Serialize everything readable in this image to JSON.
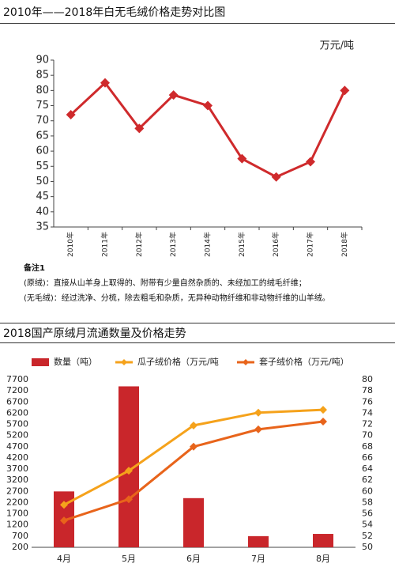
{
  "chart_data": [
    {
      "type": "line",
      "title": "2010年——2018年白无毛绒价格走势对比图",
      "ylabel": "万元/吨",
      "categories": [
        "2010年",
        "2011年",
        "2012年",
        "2013年",
        "2014年",
        "2015年",
        "2016年",
        "2017年",
        "2018年"
      ],
      "series": [
        {
          "color": "#cf2a2c",
          "values": [
            72,
            82.5,
            67.5,
            78.5,
            75,
            57.5,
            51.5,
            56.5,
            80
          ]
        }
      ],
      "ylim": [
        35,
        90
      ],
      "yticks": [
        35,
        40,
        45,
        50,
        55,
        60,
        65,
        70,
        75,
        80,
        85,
        90
      ],
      "grid": false
    },
    {
      "type": "bar",
      "title": "2018国产原绒月流通数量及价格走势",
      "categories": [
        "4月",
        "5月",
        "6月",
        "7月",
        "8月"
      ],
      "series": [
        {
          "name": "数量（吨）",
          "type": "bar",
          "color": "#c9262b",
          "values": [
            2700,
            7400,
            2400,
            700,
            800
          ]
        },
        {
          "name": "瓜子绒价格（万元/吨",
          "type": "line",
          "axis": "y2",
          "color": "#f5a21b",
          "values": [
            57.6,
            63.7,
            71.8,
            74.1,
            74.6
          ]
        },
        {
          "name": "套子绒价格（万元/吨）",
          "type": "line",
          "axis": "y2",
          "color": "#e8641b",
          "values": [
            54.8,
            58.6,
            68,
            71.1,
            72.5
          ]
        }
      ],
      "ylim": [
        200,
        7700
      ],
      "yticks": [
        200,
        700,
        1200,
        1700,
        2200,
        2700,
        3200,
        3700,
        4200,
        4700,
        5200,
        5700,
        6200,
        6700,
        7200,
        7700
      ],
      "y2lim": [
        50,
        80
      ],
      "y2ticks": [
        50,
        52,
        54,
        56,
        58,
        60,
        62,
        64,
        66,
        68,
        70,
        72,
        74,
        76,
        78,
        80
      ],
      "grid": false
    }
  ],
  "notes": {
    "title": "备注1",
    "items": [
      "(原绒)：直接从山羊身上取得的、附带有少量自然杂质的、未经加工的绒毛纤维；",
      "(无毛绒)：经过洗净、分梳，除去粗毛和杂质，无异种动物纤维和非动物纤维的山羊绒。"
    ]
  }
}
